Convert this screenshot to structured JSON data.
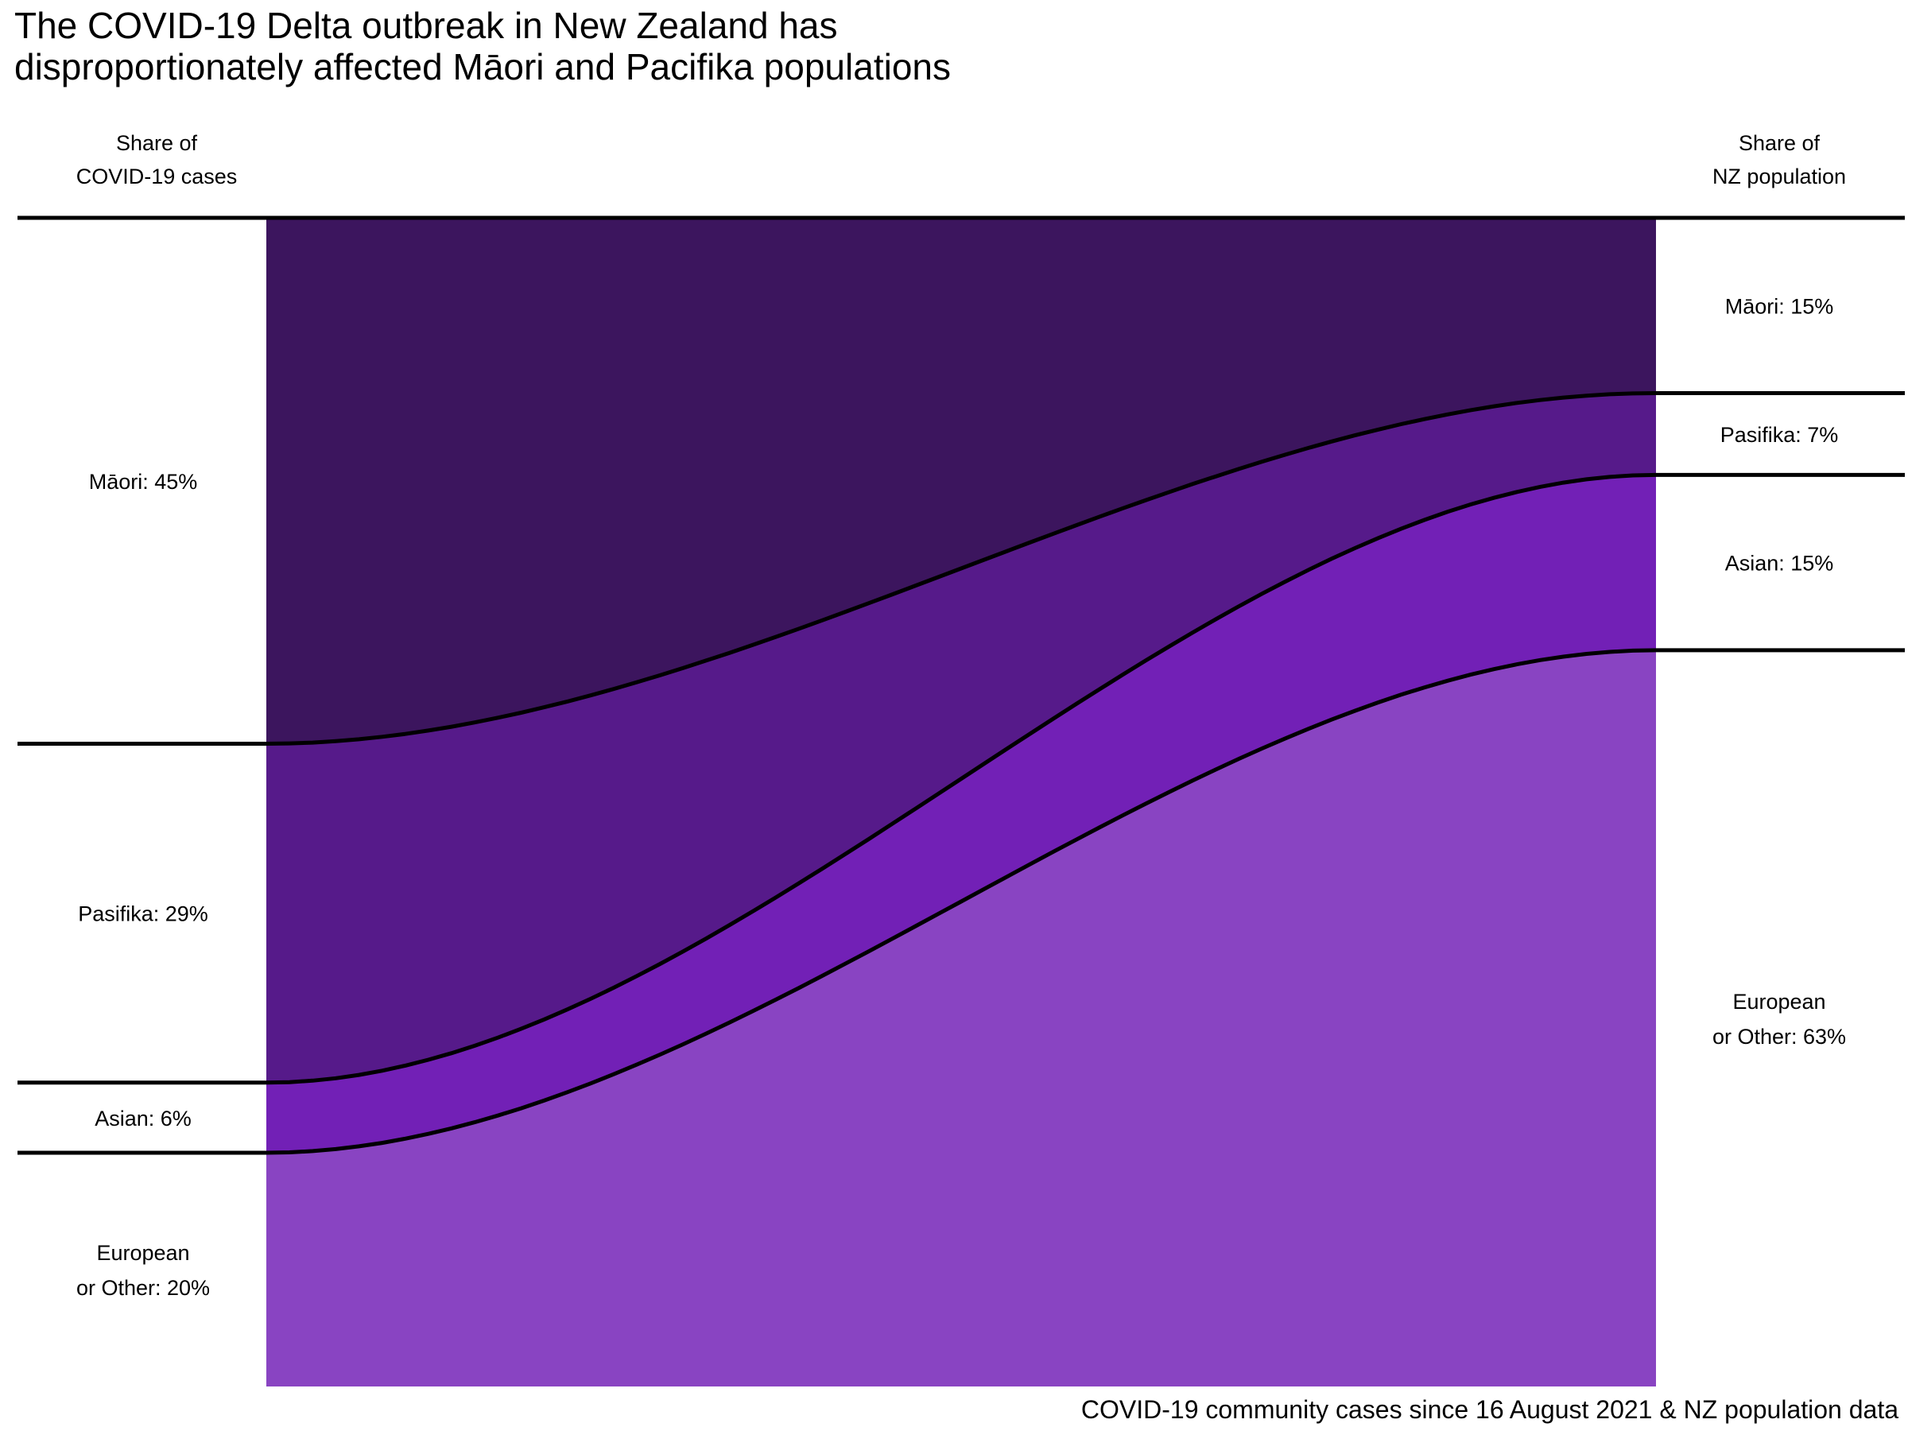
{
  "chart_data": {
    "type": "area",
    "title_lines": [
      "The COVID-19 Delta outbreak in New Zealand has",
      "disproportionately affected Māori and Pacifika populations"
    ],
    "left_header_lines": [
      "Share of",
      "COVID-19 cases"
    ],
    "right_header_lines": [
      "Share of",
      "NZ population"
    ],
    "caption": "COVID-19 community cases since 16 August 2021 & NZ population data",
    "categories": [
      "Share of COVID-19 cases",
      "Share of NZ population"
    ],
    "series": [
      {
        "name": "Māori",
        "values": [
          45,
          15
        ],
        "color": "#3c155e",
        "left_label_lines": [
          "Māori: 45%"
        ],
        "right_label_lines": [
          "Māori: 15%"
        ]
      },
      {
        "name": "Pasifika",
        "values": [
          29,
          7
        ],
        "color": "#561a8a",
        "left_label_lines": [
          "Pasifika: 29%"
        ],
        "right_label_lines": [
          "Pasifika: 7%"
        ]
      },
      {
        "name": "Asian",
        "values": [
          6,
          15
        ],
        "color": "#7220b6",
        "left_label_lines": [
          "Asian: 6%"
        ],
        "right_label_lines": [
          "Asian: 15%"
        ]
      },
      {
        "name": "European or Other",
        "values": [
          20,
          63
        ],
        "color": "#8944c2",
        "left_label_lines": [
          "European",
          "or Other: 20%"
        ],
        "right_label_lines": [
          "European",
          "or Other: 63%"
        ]
      }
    ],
    "ylim": [
      0,
      100
    ],
    "grid": false,
    "legend": "none"
  }
}
